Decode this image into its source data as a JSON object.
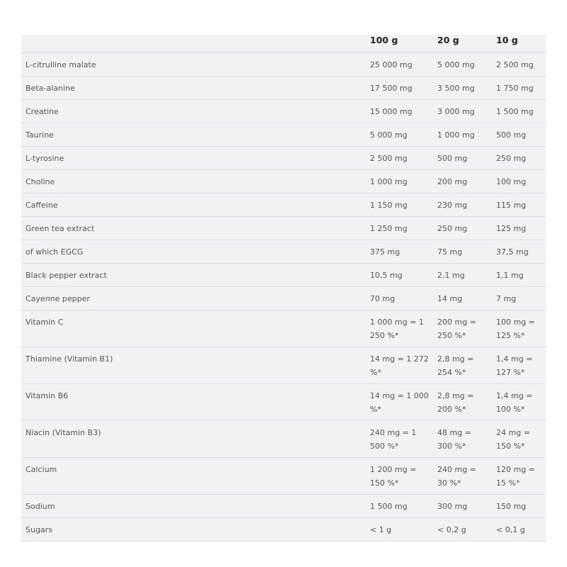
{
  "headers": [
    "",
    "100 g",
    "20 g",
    "10 g"
  ],
  "rows": [
    [
      "L-citrulline malate",
      "25 000 mg",
      "5 000 mg",
      "2 500 mg"
    ],
    [
      "Beta-alanine",
      "17 500 mg",
      "3 500 mg",
      "1 750 mg"
    ],
    [
      "Creatine",
      "15 000 mg",
      "3 000 mg",
      "1 500 mg"
    ],
    [
      "Taurine",
      "5 000 mg",
      "1 000 mg",
      "500 mg"
    ],
    [
      "L-tyrosine",
      "2 500 mg",
      "500 mg",
      "250 mg"
    ],
    [
      "Choline",
      "1 000 mg",
      "200 mg",
      "100 mg"
    ],
    [
      "Caffeine",
      "1 150 mg",
      "230 mg",
      "115 mg"
    ],
    [
      "Green tea extract",
      "1 250 mg",
      "250 mg",
      "125 mg"
    ],
    [
      "of which EGCG",
      "375 mg",
      "75 mg",
      "37,5 mg"
    ],
    [
      "Black pepper extract",
      "10,5 mg",
      "2,1 mg",
      "1,1 mg"
    ],
    [
      "Cayenne pepper",
      "70 mg",
      "14 mg",
      "7 mg"
    ],
    [
      "Vitamin C",
      "1 000 mg = 1 250 %*",
      "200 mg = 250 %*",
      "100 mg = 125 %*"
    ],
    [
      "Thiamine (Vitamin B1)",
      "14 mg = 1 272 %*",
      "2,8 mg = 254 %*",
      "1,4 mg = 127 %*"
    ],
    [
      "Vitamin B6",
      "14 mg = 1 000 %*",
      "2,8 mg = 200 %*",
      "1,4 mg = 100 %*"
    ],
    [
      "Niacin (Vitamin B3)",
      "240 mg = 1 500 %*",
      "48 mg = 300 %*",
      "24 mg = 150 %*"
    ],
    [
      "Calcium",
      "1 200 mg = 150 %*",
      "240 mg = 30 %*",
      "120 mg = 15 %*"
    ],
    [
      "Sodium",
      "1 500 mg",
      "300 mg",
      "150 mg"
    ],
    [
      "Sugars",
      "< 1 g",
      "< 0,2 g",
      "< 0,1 g"
    ]
  ]
}
